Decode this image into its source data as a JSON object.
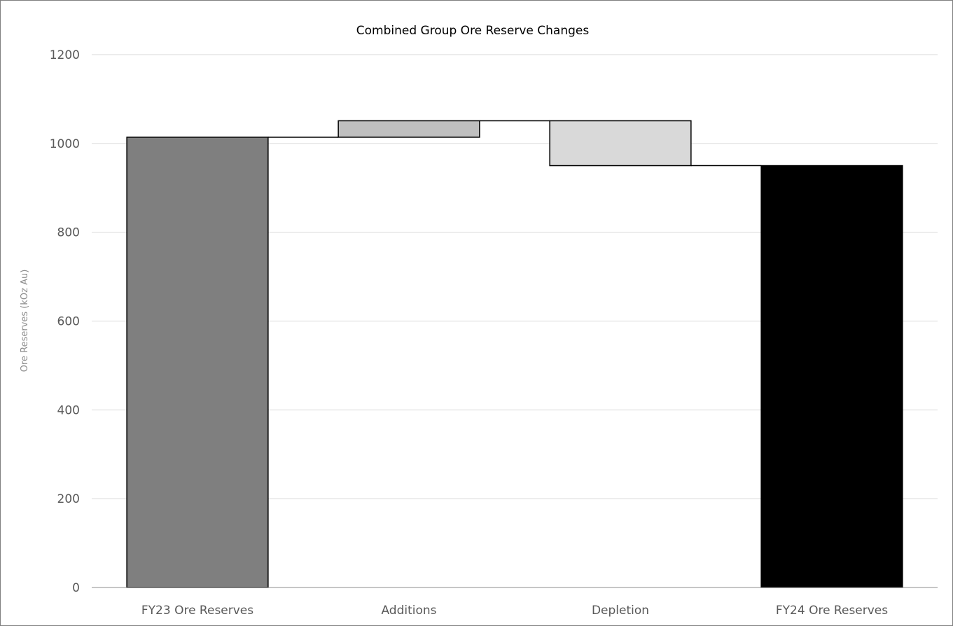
{
  "chart_data": {
    "type": "bar",
    "subtype": "waterfall",
    "title": "Combined Group Ore Reserve Changes",
    "xlabel": "",
    "ylabel": "Ore Reserves (kOz Au)",
    "ylim": [
      0,
      1200
    ],
    "yticks": [
      0,
      200,
      400,
      600,
      800,
      1000,
      1200
    ],
    "grid": true,
    "legend": "none",
    "categories": [
      "FY23 Ore Reserves",
      "Additions",
      "Depletion",
      "FY24 Ore Reserves"
    ],
    "bars": [
      {
        "category": "FY23 Ore Reserves",
        "kind": "total",
        "start": 0,
        "end": 1014,
        "color": "#7f7f7f"
      },
      {
        "category": "Additions",
        "kind": "increase",
        "start": 1014,
        "end": 1051,
        "color": "#bfbfbf"
      },
      {
        "category": "Depletion",
        "kind": "decrease",
        "start": 1051,
        "end": 950,
        "color": "#d9d9d9"
      },
      {
        "category": "FY24 Ore Reserves",
        "kind": "total",
        "start": 0,
        "end": 950,
        "color": "#000000"
      }
    ],
    "colors": {
      "grid": "#d9d9d9",
      "axis": "#8c8c8c",
      "bar_outline": "#000000"
    }
  }
}
